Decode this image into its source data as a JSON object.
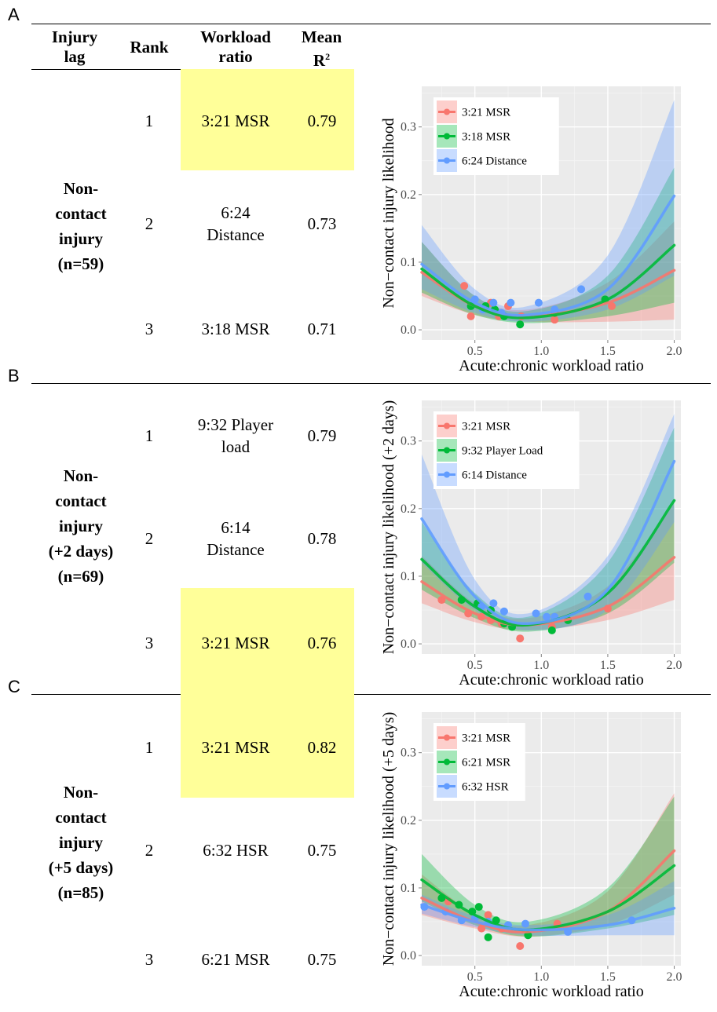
{
  "header": {
    "lag": "Injury lag",
    "rank": "Rank",
    "workload": "Workload ratio",
    "mean_r2": "Mean R",
    "mean_r2_sup": "2"
  },
  "colors": {
    "red": "#f8766d",
    "green": "#00ba38",
    "blue": "#619cff",
    "highlight": "#ffff99"
  },
  "panels": [
    {
      "letter": "A",
      "lag": "Non-contact injury (n=59)",
      "rows": [
        {
          "rank": "1",
          "workload": "3:21 MSR",
          "r2": "0.79",
          "highlight": true
        },
        {
          "rank": "2",
          "workload": "6:24 Distance",
          "r2": "0.73",
          "highlight": false
        },
        {
          "rank": "3",
          "workload": "3:18 MSR",
          "r2": "0.71",
          "highlight": false
        }
      ]
    },
    {
      "letter": "B",
      "lag": "Non-contact injury (+2 days) (n=69)",
      "rows": [
        {
          "rank": "1",
          "workload": "9:32 Player load",
          "r2": "0.79",
          "highlight": false
        },
        {
          "rank": "2",
          "workload": "6:14 Distance",
          "r2": "0.78",
          "highlight": false
        },
        {
          "rank": "3",
          "workload": "3:21 MSR",
          "r2": "0.76",
          "highlight": true
        }
      ]
    },
    {
      "letter": "C",
      "lag": "Non-contact injury (+5 days) (n=85)",
      "rows": [
        {
          "rank": "1",
          "workload": "3:21 MSR",
          "r2": "0.82",
          "highlight": true
        },
        {
          "rank": "2",
          "workload": "6:32 HSR",
          "r2": "0.75",
          "highlight": false
        },
        {
          "rank": "3",
          "workload": "6:21 MSR",
          "r2": "0.75",
          "highlight": false
        }
      ]
    }
  ],
  "chart_data": [
    {
      "type": "line",
      "xlabel": "Acute:chronic workload ratio",
      "ylabel": "Non−contact injury likelihood",
      "xlim": [
        0.1,
        2.05
      ],
      "ylim": [
        -0.015,
        0.36
      ],
      "xticks": [
        0.5,
        1.0,
        1.5,
        2.0
      ],
      "xtick_labels": [
        "0.5",
        "1.0",
        "1.5",
        "2.0"
      ],
      "yticks": [
        0.0,
        0.1,
        0.2,
        0.3
      ],
      "ytick_labels": [
        "0.0",
        "0.1",
        "0.2",
        "0.3"
      ],
      "grid": true,
      "legend_position": "top-left",
      "series": [
        {
          "name": "3:21 MSR",
          "color": "#f8766d",
          "fit_x": [
            0.1,
            0.5,
            0.9,
            1.5,
            2.0
          ],
          "fit_y": [
            0.085,
            0.035,
            0.02,
            0.04,
            0.088
          ],
          "lower_y": [
            0.05,
            0.022,
            0.012,
            0.012,
            0.015
          ],
          "upper_y": [
            0.13,
            0.05,
            0.03,
            0.07,
            0.16
          ],
          "points": [
            [
              0.42,
              0.065
            ],
            [
              0.47,
              0.02
            ],
            [
              0.62,
              0.04
            ],
            [
              0.68,
              0.02
            ],
            [
              0.75,
              0.035
            ],
            [
              0.85,
              0.02
            ],
            [
              1.1,
              0.015
            ],
            [
              1.53,
              0.035
            ]
          ]
        },
        {
          "name": "3:18 MSR",
          "color": "#00ba38",
          "fit_x": [
            0.1,
            0.5,
            0.9,
            1.5,
            2.0
          ],
          "fit_y": [
            0.09,
            0.035,
            0.018,
            0.045,
            0.125
          ],
          "lower_y": [
            0.055,
            0.022,
            0.01,
            0.02,
            0.04
          ],
          "upper_y": [
            0.13,
            0.05,
            0.028,
            0.08,
            0.24
          ],
          "points": [
            [
              0.47,
              0.035
            ],
            [
              0.58,
              0.035
            ],
            [
              0.65,
              0.03
            ],
            [
              0.72,
              0.02
            ],
            [
              0.84,
              0.008
            ],
            [
              1.1,
              0.025
            ],
            [
              1.48,
              0.045
            ]
          ]
        },
        {
          "name": "6:24 Distance",
          "color": "#619cff",
          "fit_x": [
            0.1,
            0.5,
            0.9,
            1.5,
            2.0
          ],
          "fit_y": [
            0.097,
            0.04,
            0.022,
            0.06,
            0.198
          ],
          "lower_y": [
            0.06,
            0.025,
            0.012,
            0.03,
            0.08
          ],
          "upper_y": [
            0.155,
            0.06,
            0.035,
            0.11,
            0.34
          ],
          "points": [
            [
              0.5,
              0.045
            ],
            [
              0.56,
              0.03
            ],
            [
              0.64,
              0.04
            ],
            [
              0.7,
              0.025
            ],
            [
              0.77,
              0.04
            ],
            [
              0.98,
              0.04
            ],
            [
              1.1,
              0.03
            ],
            [
              1.3,
              0.06
            ]
          ]
        }
      ]
    },
    {
      "type": "line",
      "xlabel": "Acute:chronic workload ratio",
      "ylabel": "Non−contact injury likelihood (+2 days)",
      "xlim": [
        0.1,
        2.05
      ],
      "ylim": [
        -0.015,
        0.36
      ],
      "xticks": [
        0.5,
        1.0,
        1.5,
        2.0
      ],
      "xtick_labels": [
        "0.5",
        "1.0",
        "1.5",
        "2.0"
      ],
      "yticks": [
        0.0,
        0.1,
        0.2,
        0.3
      ],
      "ytick_labels": [
        "0.0",
        "0.1",
        "0.2",
        "0.3"
      ],
      "grid": true,
      "legend_position": "top-left",
      "series": [
        {
          "name": "3:21 MSR",
          "color": "#f8766d",
          "fit_x": [
            0.1,
            0.5,
            0.9,
            1.5,
            2.0
          ],
          "fit_y": [
            0.092,
            0.045,
            0.028,
            0.055,
            0.128
          ],
          "lower_y": [
            0.06,
            0.032,
            0.02,
            0.035,
            0.065
          ],
          "upper_y": [
            0.13,
            0.06,
            0.038,
            0.085,
            0.21
          ],
          "points": [
            [
              0.25,
              0.065
            ],
            [
              0.45,
              0.045
            ],
            [
              0.55,
              0.04
            ],
            [
              0.62,
              0.035
            ],
            [
              0.7,
              0.03
            ],
            [
              0.84,
              0.008
            ],
            [
              1.08,
              0.025
            ],
            [
              1.5,
              0.052
            ]
          ]
        },
        {
          "name": "9:32 Player Load",
          "color": "#00ba38",
          "fit_x": [
            0.1,
            0.5,
            0.9,
            1.5,
            2.0
          ],
          "fit_y": [
            0.125,
            0.055,
            0.028,
            0.075,
            0.212
          ],
          "lower_y": [
            0.08,
            0.038,
            0.018,
            0.045,
            0.12
          ],
          "upper_y": [
            0.18,
            0.075,
            0.04,
            0.12,
            0.32
          ],
          "points": [
            [
              0.4,
              0.065
            ],
            [
              0.52,
              0.06
            ],
            [
              0.62,
              0.05
            ],
            [
              0.72,
              0.03
            ],
            [
              0.78,
              0.025
            ],
            [
              1.08,
              0.02
            ],
            [
              1.2,
              0.035
            ]
          ]
        },
        {
          "name": "6:14 Distance",
          "color": "#619cff",
          "fit_x": [
            0.1,
            0.5,
            0.9,
            1.5,
            2.0
          ],
          "fit_y": [
            0.185,
            0.07,
            0.03,
            0.08,
            0.27
          ],
          "lower_y": [
            0.12,
            0.05,
            0.02,
            0.05,
            0.18
          ],
          "upper_y": [
            0.28,
            0.095,
            0.045,
            0.13,
            0.34
          ],
          "points": [
            [
              0.55,
              0.055
            ],
            [
              0.64,
              0.06
            ],
            [
              0.72,
              0.048
            ],
            [
              0.96,
              0.045
            ],
            [
              1.04,
              0.04
            ],
            [
              1.1,
              0.04
            ],
            [
              1.35,
              0.07
            ]
          ]
        }
      ]
    },
    {
      "type": "line",
      "xlabel": "Acute:chronic workload ratio",
      "ylabel": "Non−contact injury likelihood (+5 days)",
      "xlim": [
        0.1,
        2.05
      ],
      "ylim": [
        -0.015,
        0.36
      ],
      "xticks": [
        0.5,
        1.0,
        1.5,
        2.0
      ],
      "xtick_labels": [
        "0.5",
        "1.0",
        "1.5",
        "2.0"
      ],
      "yticks": [
        0.0,
        0.1,
        0.2,
        0.3
      ],
      "ytick_labels": [
        "0.0",
        "0.1",
        "0.2",
        "0.3"
      ],
      "grid": true,
      "legend_position": "top-left",
      "series": [
        {
          "name": "3:21 MSR",
          "color": "#f8766d",
          "fit_x": [
            0.1,
            0.5,
            0.9,
            1.5,
            2.0
          ],
          "fit_y": [
            0.085,
            0.05,
            0.035,
            0.065,
            0.155
          ],
          "lower_y": [
            0.06,
            0.04,
            0.028,
            0.045,
            0.09
          ],
          "upper_y": [
            0.12,
            0.062,
            0.045,
            0.095,
            0.24
          ],
          "points": [
            [
              0.3,
              0.08
            ],
            [
              0.5,
              0.055
            ],
            [
              0.55,
              0.04
            ],
            [
              0.6,
              0.06
            ],
            [
              0.7,
              0.04
            ],
            [
              0.84,
              0.014
            ],
            [
              1.12,
              0.047
            ]
          ]
        },
        {
          "name": "6:21 MSR",
          "color": "#00ba38",
          "fit_x": [
            0.1,
            0.5,
            0.9,
            1.5,
            2.0
          ],
          "fit_y": [
            0.112,
            0.06,
            0.038,
            0.065,
            0.133
          ],
          "lower_y": [
            0.08,
            0.045,
            0.028,
            0.04,
            0.06
          ],
          "upper_y": [
            0.15,
            0.075,
            0.05,
            0.1,
            0.235
          ],
          "points": [
            [
              0.25,
              0.085
            ],
            [
              0.38,
              0.075
            ],
            [
              0.48,
              0.065
            ],
            [
              0.53,
              0.072
            ],
            [
              0.6,
              0.027
            ],
            [
              0.66,
              0.052
            ],
            [
              0.9,
              0.03
            ]
          ]
        },
        {
          "name": "6:32 HSR",
          "color": "#619cff",
          "fit_x": [
            0.1,
            0.5,
            0.9,
            1.5,
            2.0
          ],
          "fit_y": [
            0.075,
            0.05,
            0.038,
            0.045,
            0.07
          ],
          "lower_y": [
            0.062,
            0.042,
            0.03,
            0.03,
            0.03
          ],
          "upper_y": [
            0.09,
            0.058,
            0.045,
            0.06,
            0.11
          ],
          "points": [
            [
              0.12,
              0.072
            ],
            [
              0.28,
              0.065
            ],
            [
              0.4,
              0.052
            ],
            [
              0.5,
              0.055
            ],
            [
              0.6,
              0.05
            ],
            [
              0.75,
              0.045
            ],
            [
              0.88,
              0.047
            ],
            [
              1.2,
              0.035
            ],
            [
              1.68,
              0.052
            ]
          ]
        }
      ]
    }
  ]
}
